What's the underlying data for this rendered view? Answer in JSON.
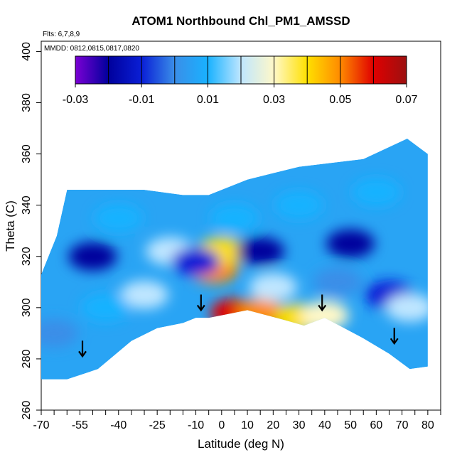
{
  "chart_data": {
    "type": "heatmap",
    "title": "ATOM1 Northbound Chl_PM1_AMSSD",
    "annotations": [
      "Flts: 6,7,8,9",
      "MMDD: 0812,0815,0817,0820"
    ],
    "xlabel": "Latitude (deg N)",
    "ylabel": "Theta (C)",
    "xlim": [
      -70,
      85
    ],
    "ylim": [
      260,
      404
    ],
    "x_ticks": [
      -70,
      -55,
      -40,
      -25,
      -10,
      0,
      10,
      20,
      30,
      40,
      50,
      60,
      70,
      80
    ],
    "x_tick_labels": [
      "-70",
      "-55",
      "-40",
      "-25",
      "-10",
      "0",
      "10",
      "20",
      "30",
      "40",
      "50",
      "60",
      "70",
      "80"
    ],
    "x_minor_ticks": [
      -65,
      -60,
      -50,
      -45,
      -35,
      -30,
      -20,
      -15,
      -5,
      5,
      15,
      25,
      35,
      45,
      55,
      65,
      75,
      85
    ],
    "y_ticks": [
      260,
      280,
      300,
      320,
      340,
      360,
      380,
      400
    ],
    "y_tick_labels": [
      "260",
      "280",
      "300",
      "320",
      "340",
      "360",
      "380",
      "400"
    ],
    "colorbar": {
      "min": -0.03,
      "max": 0.07,
      "boundaries": [
        -0.03,
        -0.02,
        -0.01,
        0.0,
        0.01,
        0.02,
        0.03,
        0.04,
        0.05,
        0.06,
        0.07
      ],
      "tick_values": [
        -0.03,
        -0.01,
        0.01,
        0.03,
        0.05,
        0.07
      ],
      "tick_labels": [
        "-0.03",
        "-0.01",
        "0.01",
        "0.03",
        "0.05",
        "0.07"
      ],
      "colors": [
        "#7b00d4",
        "#00009c",
        "#0a1fd6",
        "#3a8ee8",
        "#19b2ff",
        "#bfe6ff",
        "#fff8c8",
        "#ffe000",
        "#ff8a00",
        "#e00000",
        "#9c1010"
      ]
    },
    "data_extent": {
      "lat": [
        -70,
        80
      ],
      "theta_top": [
        [
          -70,
          313
        ],
        [
          -64,
          328
        ],
        [
          -60,
          346
        ],
        [
          -30,
          346
        ],
        [
          -15,
          344
        ],
        [
          -5,
          344
        ],
        [
          10,
          350
        ],
        [
          30,
          355
        ],
        [
          55,
          358
        ],
        [
          72,
          366
        ],
        [
          80,
          360
        ]
      ],
      "theta_bottom": [
        [
          -70,
          272
        ],
        [
          -60,
          272
        ],
        [
          -48,
          276
        ],
        [
          -35,
          287
        ],
        [
          -25,
          292
        ],
        [
          -15,
          294
        ],
        [
          -10,
          296
        ],
        [
          -5,
          296
        ],
        [
          10,
          299
        ],
        [
          25,
          295
        ],
        [
          32,
          293
        ],
        [
          40,
          296
        ],
        [
          55,
          288
        ],
        [
          65,
          282
        ],
        [
          73,
          276
        ],
        [
          80,
          277
        ]
      ]
    },
    "terrain_arrows": [
      [
        -54,
        281
      ],
      [
        -8,
        299
      ],
      [
        39,
        299
      ],
      [
        67,
        286
      ]
    ],
    "features": [
      {
        "lat": -3,
        "theta": 315,
        "value": 0.05
      },
      {
        "lat": 0,
        "theta": 322,
        "value": 0.04
      },
      {
        "lat": 5,
        "theta": 298,
        "value": 0.06
      },
      {
        "lat": 15,
        "theta": 298,
        "value": 0.05
      },
      {
        "lat": 30,
        "theta": 296,
        "value": 0.045
      },
      {
        "lat": 40,
        "theta": 297,
        "value": 0.035
      },
      {
        "lat": 20,
        "theta": 308,
        "value": 0.025
      },
      {
        "lat": -30,
        "theta": 305,
        "value": 0.02
      },
      {
        "lat": -20,
        "theta": 322,
        "value": 0.02
      },
      {
        "lat": 15,
        "theta": 322,
        "value": -0.02
      },
      {
        "lat": -10,
        "theta": 318,
        "value": -0.01
      },
      {
        "lat": 50,
        "theta": 325,
        "value": -0.02
      },
      {
        "lat": -50,
        "theta": 320,
        "value": -0.015
      },
      {
        "lat": 45,
        "theta": 310,
        "value": 0.0
      },
      {
        "lat": 65,
        "theta": 305,
        "value": -0.01
      },
      {
        "lat": 73,
        "theta": 300,
        "value": 0.025
      },
      {
        "lat": -40,
        "theta": 335,
        "value": 0.01
      },
      {
        "lat": 60,
        "theta": 345,
        "value": 0.01
      },
      {
        "lat": -65,
        "theta": 290,
        "value": 0.008
      },
      {
        "lat": -45,
        "theta": 300,
        "value": 0.012
      },
      {
        "lat": 5,
        "theta": 335,
        "value": 0.012
      },
      {
        "lat": 30,
        "theta": 340,
        "value": 0.01
      }
    ]
  }
}
